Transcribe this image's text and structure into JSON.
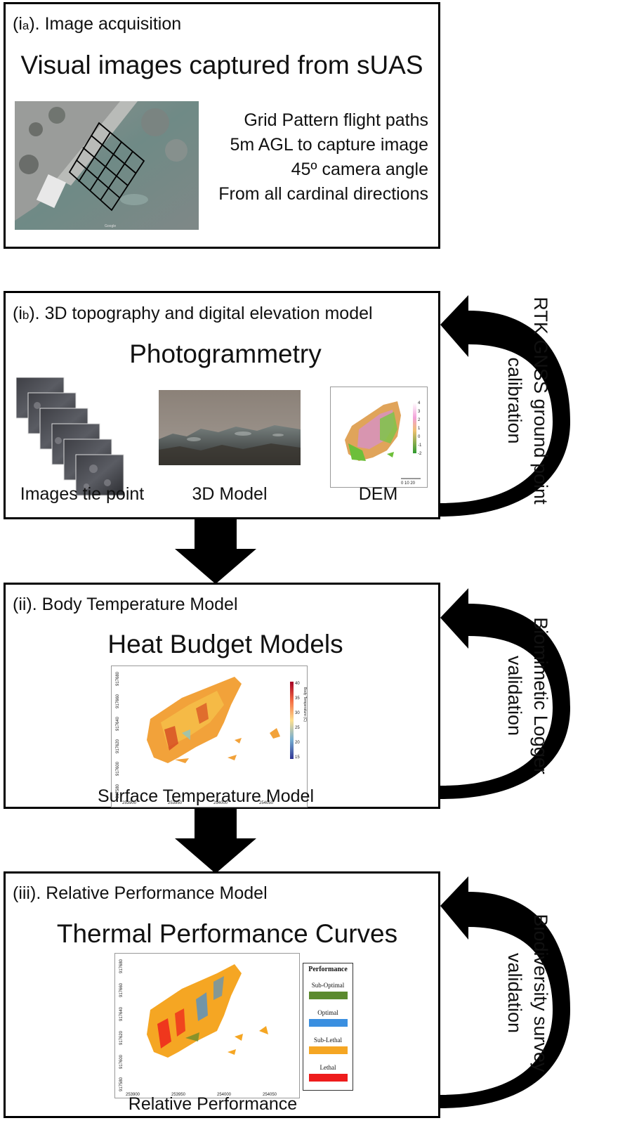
{
  "panel_ia": {
    "step_prefix": "(i",
    "step_sub": "a",
    "step_suffix": "). Image acquisition",
    "heading": "Visual images captured from sUAS",
    "notes": [
      "Grid Pattern flight paths",
      "5m AGL to capture image",
      "45º camera angle",
      "From all cardinal directions"
    ],
    "map_watermark": "Google"
  },
  "panel_ib": {
    "step_prefix": "(i",
    "step_sub": "b",
    "step_suffix": "). 3D topography and digital elevation model",
    "heading": "Photogrammetry",
    "captions": [
      "Images tie point",
      "3D Model",
      "DEM"
    ],
    "dem_scale_ticks": [
      "4",
      "3",
      "2",
      "1",
      "0",
      "-1",
      "-2"
    ],
    "dem_scalebar": "0  10  20"
  },
  "panel_ii": {
    "step_label": "(ii). Body Temperature Model",
    "heading": "Heat Budget Models",
    "caption": "Surface Temperature Model",
    "y_ticks": [
      "917680",
      "917660",
      "917640",
      "917620",
      "917600",
      "917580"
    ],
    "x_ticks": [
      "253900",
      "253950",
      "254000",
      "254050"
    ],
    "colorbar_ticks": [
      "40",
      "35",
      "30",
      "25",
      "20",
      "15"
    ],
    "colorbar_label": "Body Temperature (C)"
  },
  "panel_iii": {
    "step_label": "(iii). Relative Performance Model",
    "heading": "Thermal Performance Curves",
    "caption": "Relative Performance",
    "y_ticks": [
      "917680",
      "917660",
      "917640",
      "917620",
      "917600",
      "917580"
    ],
    "x_ticks": [
      "253900",
      "253950",
      "254000",
      "254050"
    ],
    "legend_title": "Performance",
    "legend": [
      {
        "label": "Sub-Optimal",
        "color": "#5b8a2e"
      },
      {
        "label": "Optimal",
        "color": "#3a8fe0"
      },
      {
        "label": "Sub-Lethal",
        "color": "#f5a623"
      },
      {
        "label": "Lethal",
        "color": "#ee1c1c"
      }
    ]
  },
  "side_notes": {
    "rtk": [
      "RTK GNSS ground point",
      "calibration"
    ],
    "biomimetic": [
      "Biomimetic Logger",
      "validation"
    ],
    "biodiversity": [
      "Biodiversity survey",
      "validation"
    ]
  }
}
